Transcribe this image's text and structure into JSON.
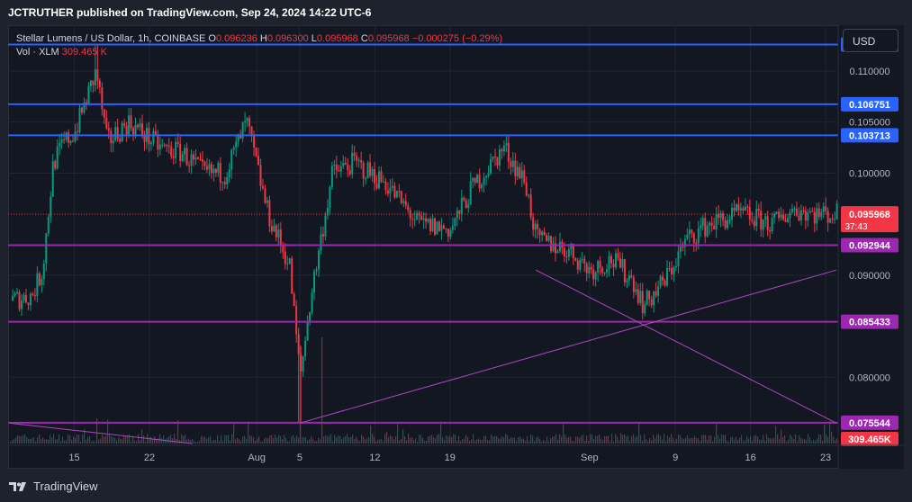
{
  "header": {
    "published_by": "JCTRUTHER published on TradingView.com, Sep 24, 2024 14:22 UTC-6"
  },
  "legend": {
    "symbol": "Stellar Lumens / US Dollar, 1h, COINBASE",
    "open_label": "O",
    "open": "0.096236",
    "high_label": "H",
    "high": "0.096300",
    "low_label": "L",
    "low": "0.095968",
    "close_label": "C",
    "close": "0.095968",
    "change": "−0.000275 (−0.29%)",
    "volume_label": "Vol · XLM",
    "volume": "309.465 K"
  },
  "currency_button": "USD",
  "footer": {
    "brand": "TradingView"
  },
  "colors": {
    "up": "#089981",
    "down": "#f23645",
    "blue_level": "#2962ff",
    "purple_level": "#9c27b0",
    "trend": "#ab47bc",
    "background": "#131722"
  },
  "icons": {
    "logo": "tradingview-logo-icon"
  },
  "chart_data": {
    "type": "candlestick",
    "interval": "1h",
    "y_scale": "linear",
    "ylim": [
      0.0735,
      0.1145
    ],
    "y_ticks": [
      "0.110000",
      "0.105000",
      "0.100000",
      "0.090000",
      "0.080000"
    ],
    "x_ticks": [
      "15",
      "22",
      "Aug",
      "5",
      "12",
      "19",
      "Sep",
      "9",
      "16",
      "23"
    ],
    "horizontal_levels": [
      {
        "value": 0.112601,
        "label": "0.112601",
        "color": "blue"
      },
      {
        "value": 0.106751,
        "label": "0.106751",
        "color": "blue"
      },
      {
        "value": 0.103713,
        "label": "0.103713",
        "color": "blue"
      },
      {
        "value": 0.092944,
        "label": "0.092944",
        "color": "purple"
      },
      {
        "value": 0.085433,
        "label": "0.085433",
        "color": "purple"
      },
      {
        "value": 0.075544,
        "label": "0.075544",
        "color": "purple"
      }
    ],
    "last_price": {
      "value": 0.095968,
      "label": "0.095968",
      "countdown": "37:43"
    },
    "volume_label": "309.465K",
    "trend_lines": [
      {
        "from": [
          "Jul 9",
          0.0755
        ],
        "to": [
          "Jul 26",
          0.0735
        ]
      },
      {
        "from": [
          "Aug 5",
          0.0755
        ],
        "to": [
          "Sep 24",
          0.0905
        ]
      },
      {
        "from": [
          "Aug 27",
          0.0905
        ],
        "to": [
          "Sep 24",
          0.0755
        ]
      }
    ],
    "price_path": [
      {
        "date": "Jul 9",
        "close": 0.0875
      },
      {
        "date": "Jul 11",
        "close": 0.088
      },
      {
        "date": "Jul 12",
        "close": 0.0905
      },
      {
        "date": "Jul 13",
        "close": 0.101
      },
      {
        "date": "Jul 14",
        "close": 0.103
      },
      {
        "date": "Jul 15",
        "close": 0.104
      },
      {
        "date": "Jul 17",
        "close": 0.11
      },
      {
        "date": "Jul 18",
        "close": 0.103
      },
      {
        "date": "Jul 20",
        "close": 0.105
      },
      {
        "date": "Jul 23",
        "close": 0.1025
      },
      {
        "date": "Jul 25",
        "close": 0.102
      },
      {
        "date": "Jul 27",
        "close": 0.1
      },
      {
        "date": "Jul 29",
        "close": 0.1
      },
      {
        "date": "Jul 31",
        "close": 0.105
      },
      {
        "date": "Aug 2",
        "close": 0.096
      },
      {
        "date": "Aug 4",
        "close": 0.091
      },
      {
        "date": "Aug 5",
        "close": 0.08
      },
      {
        "date": "Aug 6",
        "close": 0.088
      },
      {
        "date": "Aug 8",
        "close": 0.1
      },
      {
        "date": "Aug 10",
        "close": 0.101
      },
      {
        "date": "Aug 13",
        "close": 0.099
      },
      {
        "date": "Aug 16",
        "close": 0.095
      },
      {
        "date": "Aug 19",
        "close": 0.0945
      },
      {
        "date": "Aug 21",
        "close": 0.0985
      },
      {
        "date": "Aug 24",
        "close": 0.1025
      },
      {
        "date": "Aug 26",
        "close": 0.099
      },
      {
        "date": "Aug 27",
        "close": 0.0935
      },
      {
        "date": "Aug 30",
        "close": 0.0925
      },
      {
        "date": "Sep 1",
        "close": 0.0905
      },
      {
        "date": "Sep 3",
        "close": 0.0915
      },
      {
        "date": "Sep 5",
        "close": 0.0895
      },
      {
        "date": "Sep 6",
        "close": 0.087
      },
      {
        "date": "Sep 8",
        "close": 0.0895
      },
      {
        "date": "Sep 10",
        "close": 0.0935
      },
      {
        "date": "Sep 12",
        "close": 0.095
      },
      {
        "date": "Sep 15",
        "close": 0.096
      },
      {
        "date": "Sep 18",
        "close": 0.095
      },
      {
        "date": "Sep 20",
        "close": 0.0965
      },
      {
        "date": "Sep 22",
        "close": 0.096
      },
      {
        "date": "Sep 24",
        "close": 0.095968
      }
    ],
    "volume_spikes": [
      {
        "date": "Aug 5",
        "relative": 0.9
      },
      {
        "date": "Aug 7",
        "relative": 1.0
      }
    ]
  }
}
